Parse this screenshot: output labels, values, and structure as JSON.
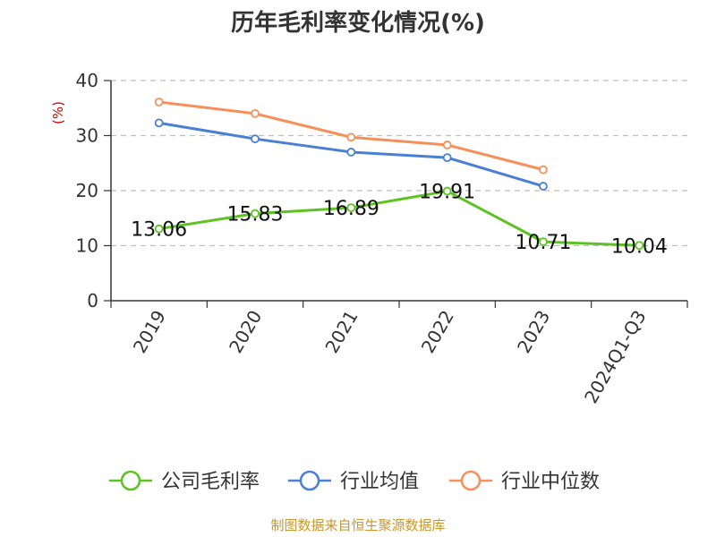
{
  "chart_data": {
    "type": "line",
    "title": "历年毛利率变化情况(%)",
    "ylabel": "(%)",
    "ylim": [
      0,
      40
    ],
    "yticks": [
      0,
      10,
      20,
      30,
      40
    ],
    "categories": [
      "2019",
      "2020",
      "2021",
      "2022",
      "2023",
      "2024Q1-Q3"
    ],
    "grid": true,
    "legend_position": "bottom",
    "series": [
      {
        "name": "公司毛利率",
        "color": "#5cc320",
        "values": [
          13.06,
          15.83,
          16.89,
          19.91,
          10.71,
          10.04
        ],
        "labels": [
          "13.06",
          "15.83",
          "16.89",
          "19.91",
          "10.71",
          "10.04"
        ]
      },
      {
        "name": "行业均值",
        "color": "#4a7fd6",
        "values": [
          32.3,
          29.4,
          27.0,
          26.0,
          20.8,
          null
        ]
      },
      {
        "name": "行业中位数",
        "color": "#f5905a",
        "values": [
          36.1,
          34.0,
          29.7,
          28.3,
          23.8,
          null
        ]
      }
    ]
  },
  "source": "制图数据来自恒生聚源数据库"
}
